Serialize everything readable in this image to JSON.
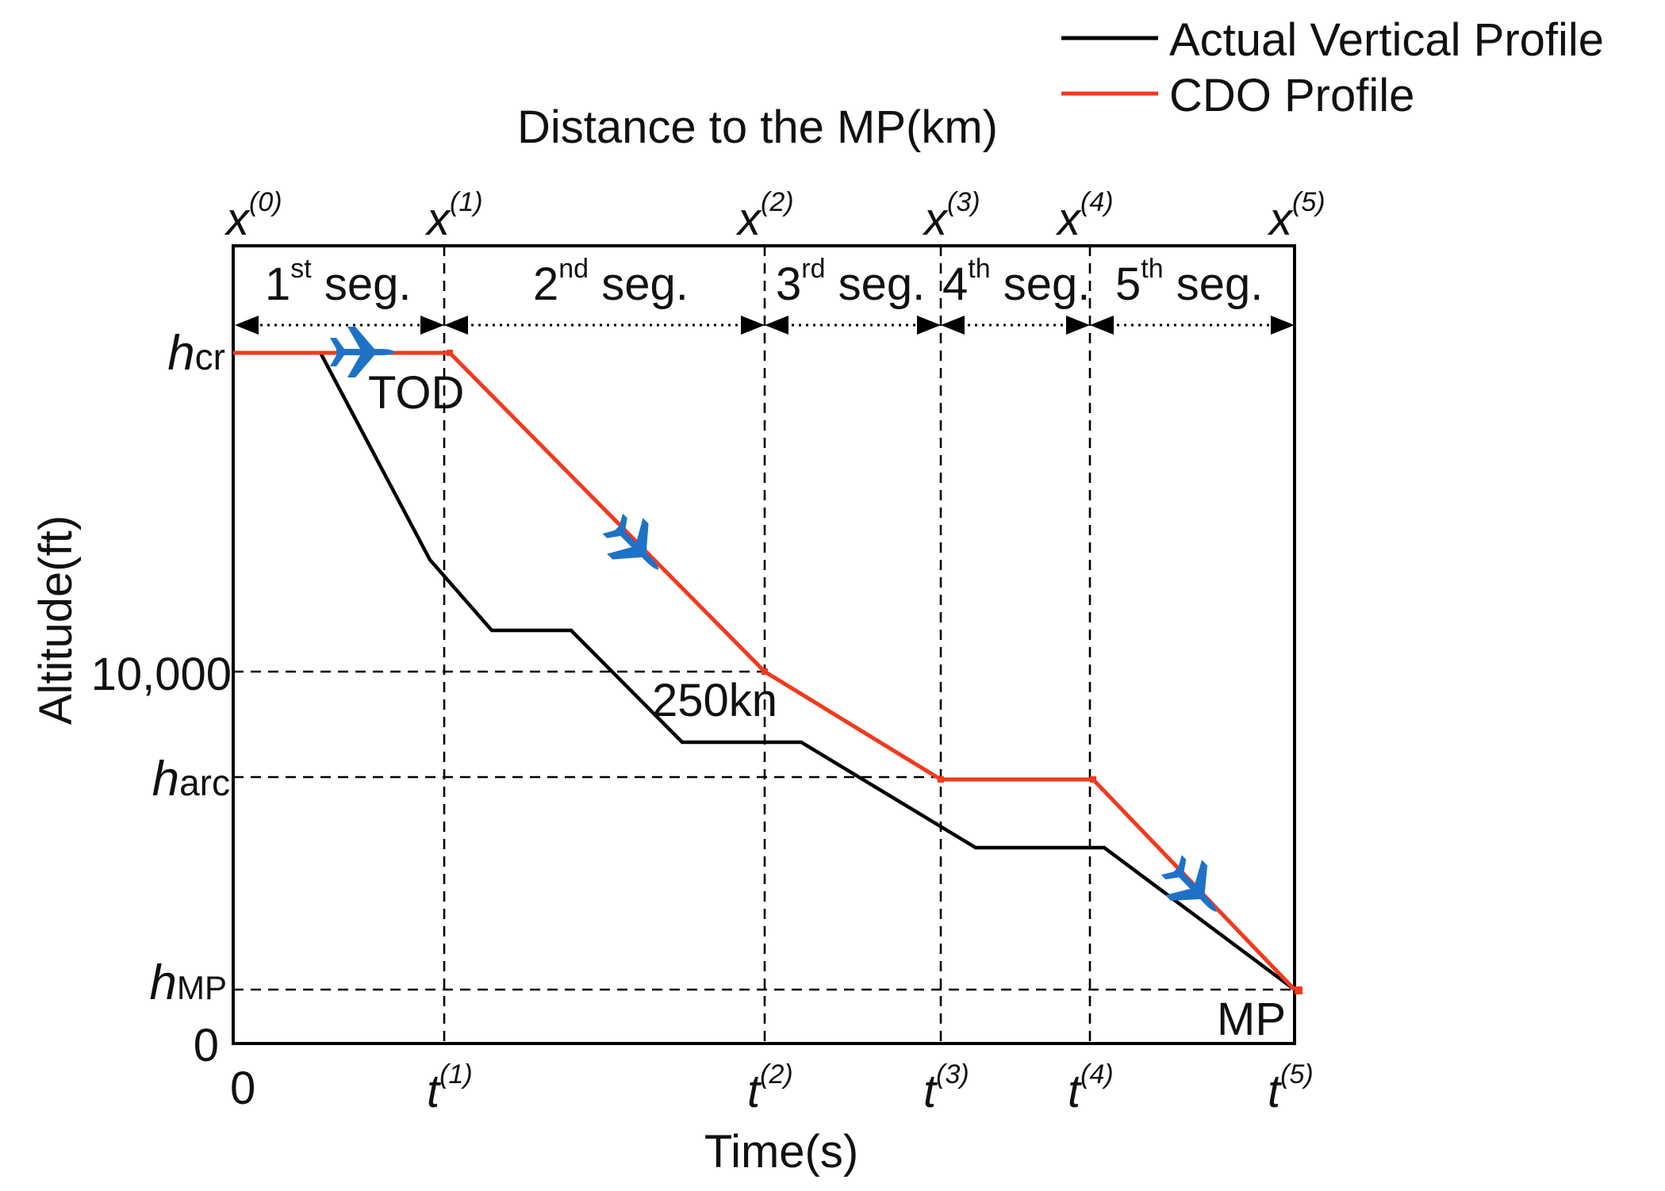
{
  "colors": {
    "actual": "#000000",
    "cdo": "#f13a1e",
    "plane": "#1d72c8"
  },
  "legend": {
    "actual": "Actual Vertical Profile",
    "cdo": "CDO Profile"
  },
  "top_axis_title": "Distance to the MP(km)",
  "x_axis_title": "Time(s)",
  "y_axis_title": "Altitude(ft)",
  "distance_marks": [
    {
      "base": "x",
      "sup": "(0)"
    },
    {
      "base": "x",
      "sup": "(1)"
    },
    {
      "base": "x",
      "sup": "(2)"
    },
    {
      "base": "x",
      "sup": "(3)"
    },
    {
      "base": "x",
      "sup": "(4)"
    },
    {
      "base": "x",
      "sup": "(5)"
    }
  ],
  "time_marks": [
    {
      "base": "0",
      "sup": ""
    },
    {
      "base": "t",
      "sup": "(1)"
    },
    {
      "base": "t",
      "sup": "(2)"
    },
    {
      "base": "t",
      "sup": "(3)"
    },
    {
      "base": "t",
      "sup": "(4)"
    },
    {
      "base": "t",
      "sup": "(5)"
    }
  ],
  "segments": [
    {
      "num": "1",
      "sup": "st",
      "text": " seg."
    },
    {
      "num": "2",
      "sup": "nd",
      "text": " seg."
    },
    {
      "num": "3",
      "sup": "rd",
      "text": " seg."
    },
    {
      "num": "4",
      "sup": "th",
      "text": " seg."
    },
    {
      "num": "5",
      "sup": "th",
      "text": " seg."
    }
  ],
  "altitude_labels": {
    "hcr": {
      "h": "h",
      "sub": "cr"
    },
    "ten_thousand": "10,000",
    "harc": {
      "h": "h",
      "sub": "arc"
    },
    "hmp": {
      "h": "h",
      "sub": "MP"
    },
    "zero": "0"
  },
  "annotations": {
    "tod": "TOD",
    "speed": "250kn",
    "mp": "MP"
  },
  "icons": {
    "plane": "airplane-icon"
  }
}
